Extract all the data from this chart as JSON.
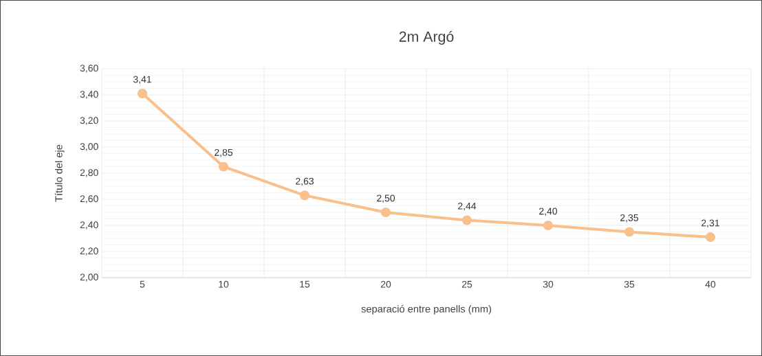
{
  "chart_data": {
    "type": "line",
    "title": "2m Argó",
    "xlabel": "separació entre panells (mm)",
    "ylabel": "Título del eje",
    "categories": [
      "5",
      "10",
      "15",
      "20",
      "25",
      "30",
      "35",
      "40"
    ],
    "series": [
      {
        "color": "#f9c08e",
        "values": [
          3.41,
          2.85,
          2.63,
          2.5,
          2.44,
          2.4,
          2.35,
          2.31
        ],
        "value_labels": [
          "3,41",
          "2,85",
          "2,63",
          "2,50",
          "2,44",
          "2,40",
          "2,35",
          "2,31"
        ]
      }
    ],
    "ylim": [
      2.0,
      3.6
    ],
    "yticks": [
      {
        "value": 2.0,
        "label": "2,00"
      },
      {
        "value": 2.2,
        "label": "2,20"
      },
      {
        "value": 2.4,
        "label": "2,40"
      },
      {
        "value": 2.6,
        "label": "2,60"
      },
      {
        "value": 2.8,
        "label": "2,80"
      },
      {
        "value": 3.0,
        "label": "3,00"
      },
      {
        "value": 3.2,
        "label": "3,20"
      },
      {
        "value": 3.4,
        "label": "3,40"
      },
      {
        "value": 3.6,
        "label": "3,60"
      }
    ],
    "grid": true,
    "marker": "circle",
    "line_style": "solid"
  }
}
